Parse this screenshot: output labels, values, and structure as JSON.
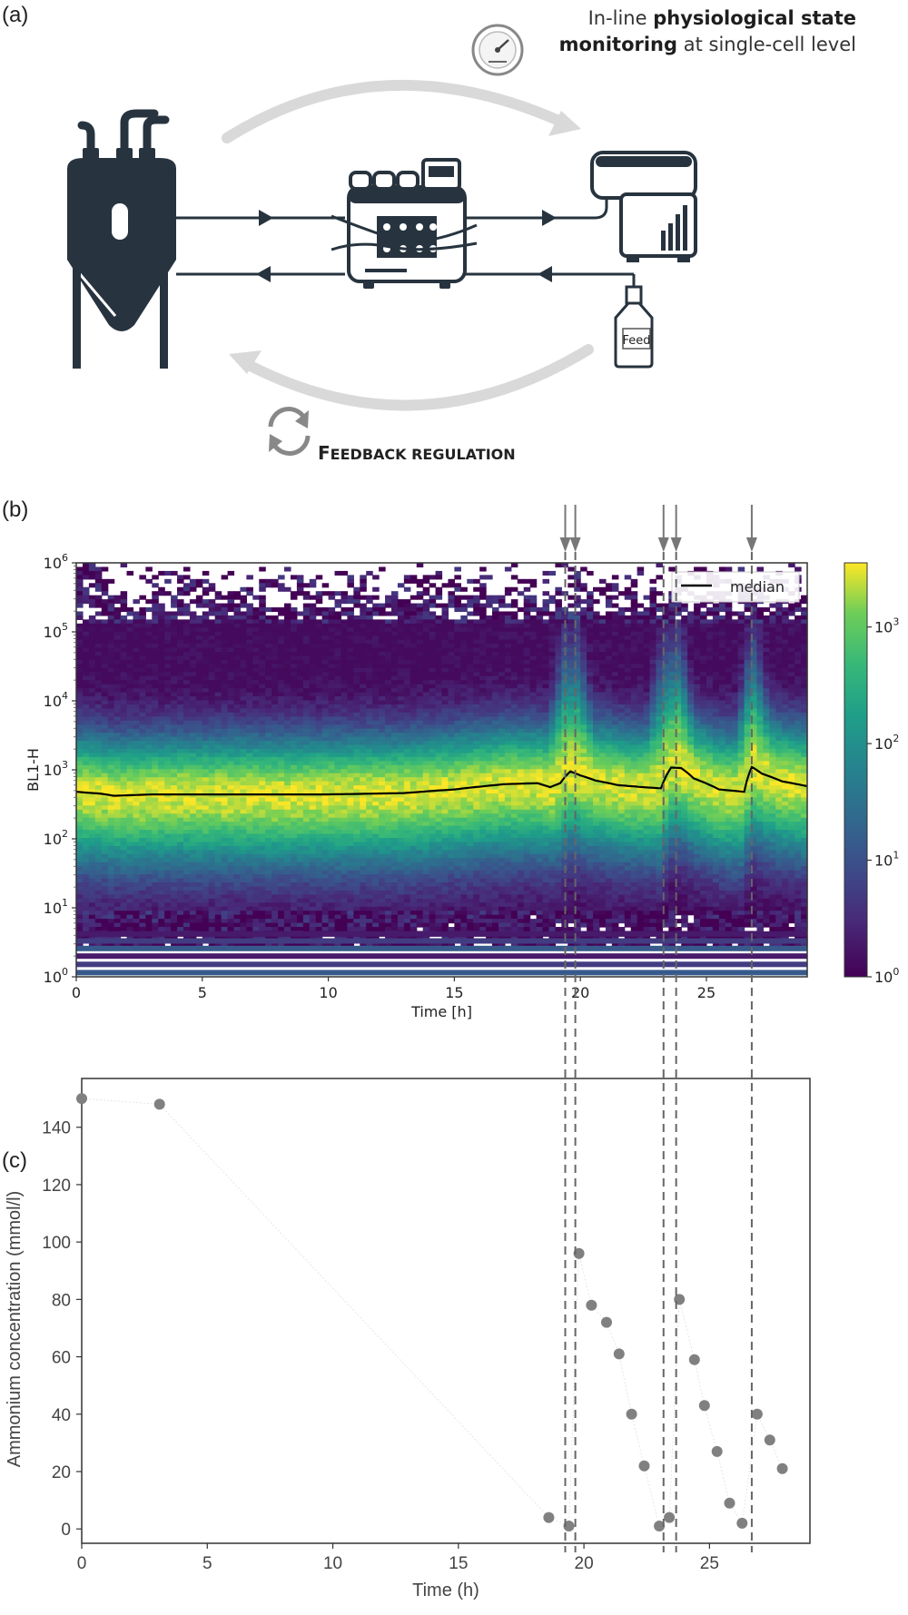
{
  "panels": {
    "a": "(a)",
    "b": "(b)",
    "c": "(c)"
  },
  "diagram": {
    "monitoring_prefix": "In-line ",
    "monitoring_bold_1": "physiological state",
    "monitoring_bold_2": "monitoring",
    "monitoring_suffix": " at single-cell level",
    "feed_label": "Feed",
    "feedback_first_letter": "F",
    "feedback_rest": "EEDBACK REGULATION",
    "colors": {
      "dark": "#27343f",
      "arrow_grey": "#d9d9d9"
    }
  },
  "chart_data": [
    {
      "type": "heatmap",
      "panel": "b",
      "xlabel": "Time [h]",
      "ylabel": "BL1-H",
      "xlim": [
        0,
        29
      ],
      "ylim_log10": [
        0,
        6
      ],
      "xticks": [
        0,
        5,
        10,
        15,
        20,
        25
      ],
      "yticks": [
        {
          "base": "10",
          "exp": "0"
        },
        {
          "base": "10",
          "exp": "1"
        },
        {
          "base": "10",
          "exp": "2"
        },
        {
          "base": "10",
          "exp": "3"
        },
        {
          "base": "10",
          "exp": "4"
        },
        {
          "base": "10",
          "exp": "5"
        },
        {
          "base": "10",
          "exp": "6"
        }
      ],
      "colormap": "viridis",
      "colorbar_ticks": [
        {
          "base": "10",
          "exp": "0"
        },
        {
          "base": "10",
          "exp": "1"
        },
        {
          "base": "10",
          "exp": "2"
        },
        {
          "base": "10",
          "exp": "3"
        }
      ],
      "legend": {
        "entry": "median",
        "placement": "top-right"
      },
      "median_series": {
        "name": "median",
        "x": [
          0,
          1,
          1.5,
          3,
          6,
          10,
          13,
          15,
          17,
          18.3,
          18.8,
          19.2,
          19.6,
          20.0,
          20.6,
          21.5,
          22.5,
          23.2,
          23.6,
          24.0,
          24.5,
          25.5,
          26.5,
          26.8,
          27.2,
          28,
          29
        ],
        "y": [
          480,
          450,
          420,
          440,
          440,
          440,
          460,
          520,
          620,
          640,
          560,
          640,
          950,
          830,
          700,
          600,
          560,
          540,
          1080,
          1060,
          750,
          520,
          480,
          1100,
          880,
          680,
          580
        ]
      },
      "feed_events_h": [
        19.4,
        19.8,
        23.3,
        23.8,
        26.8
      ]
    },
    {
      "type": "scatter",
      "panel": "c",
      "xlabel": "Time (h)",
      "ylabel": "Ammonium concentration (mmol/l)",
      "xlim": [
        0,
        29
      ],
      "ylim": [
        -5,
        157
      ],
      "xticks": [
        0,
        5,
        10,
        15,
        20,
        25
      ],
      "yticks": [
        0,
        20,
        40,
        60,
        80,
        100,
        120,
        140
      ],
      "marker_color": "#808080",
      "x": [
        0,
        3.1,
        18.6,
        19.4,
        19.8,
        20.3,
        20.9,
        21.4,
        21.9,
        22.4,
        23.0,
        23.4,
        23.8,
        24.4,
        24.8,
        25.3,
        25.8,
        26.3,
        26.9,
        27.4,
        27.9
      ],
      "y": [
        150,
        148,
        4,
        1,
        96,
        78,
        72,
        61,
        40,
        22,
        1,
        4,
        80,
        59,
        43,
        27,
        9,
        2,
        40,
        31,
        21
      ],
      "feed_events_h": [
        19.4,
        19.8,
        23.3,
        23.8,
        26.8
      ]
    }
  ]
}
